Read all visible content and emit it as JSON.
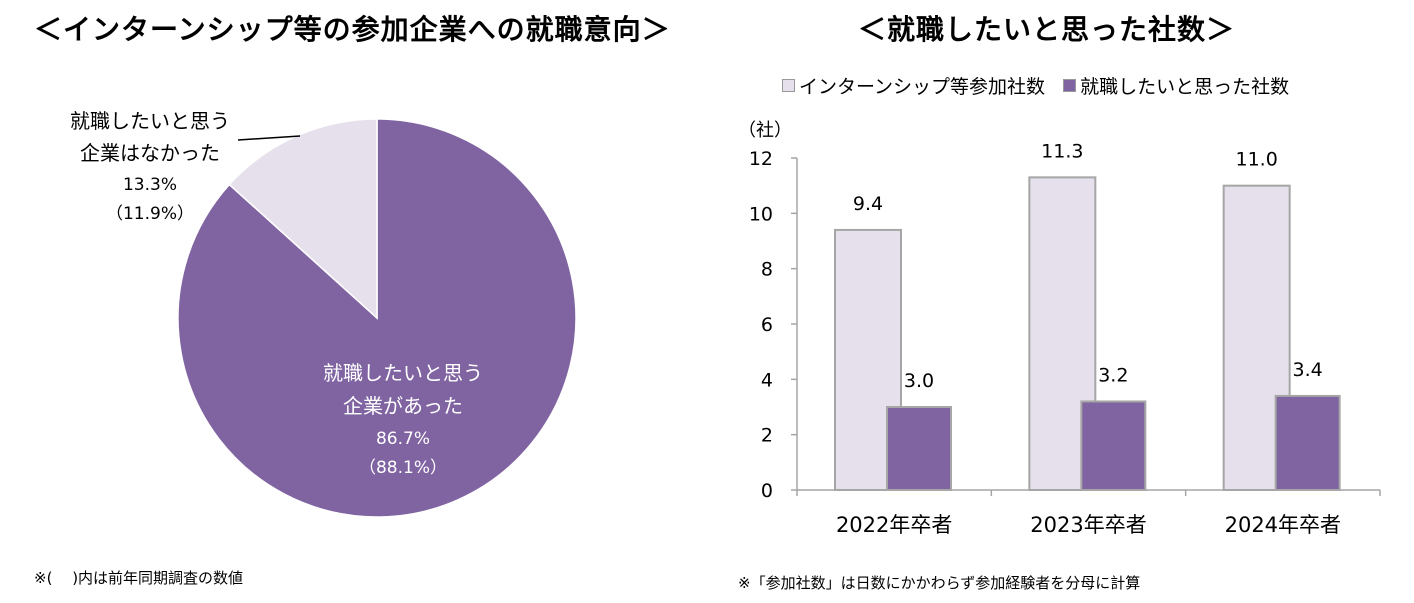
{
  "left_title": "＜インターンシップ等の参加企業への就職意向＞",
  "right_title": "＜就職したいと思った社数＞",
  "left_note": "※(　 )内は前年同期調査の数値",
  "right_note": "※「参加社数」は日数にかかわらず参加経験者を分母に計算",
  "colors": {
    "purple": "#8064A2",
    "lavender": "#E6E0EC",
    "border": "#A6A6A6"
  },
  "chart_data": [
    {
      "type": "pie",
      "title": "＜インターンシップ等の参加企業への就職意向＞",
      "slices": [
        {
          "label_lines": [
            "就職したいと思う",
            "企業があった"
          ],
          "value": 86.7,
          "value_text": "86.7%",
          "prev_text": "（88.1%）",
          "color": "#8064A2"
        },
        {
          "label_lines": [
            "就職したいと思う",
            "企業はなかった"
          ],
          "value": 13.3,
          "value_text": "13.3%",
          "prev_text": "（11.9%）",
          "color": "#E6E0EC"
        }
      ]
    },
    {
      "type": "bar",
      "title": "＜就職したいと思った社数＞",
      "ylabel": "（社）",
      "ylim": [
        0,
        12
      ],
      "yticks": [
        0,
        2,
        4,
        6,
        8,
        10,
        12
      ],
      "categories": [
        "2022年卒者",
        "2023年卒者",
        "2024年卒者"
      ],
      "series": [
        {
          "name": "インターンシップ等参加社数",
          "color": "#E6E0EC",
          "values": [
            9.4,
            11.3,
            11.0
          ],
          "labels": [
            "9.4",
            "11.3",
            "11.0"
          ]
        },
        {
          "name": "就職したいと思った社数",
          "color": "#8064A2",
          "values": [
            3.0,
            3.2,
            3.4
          ],
          "labels": [
            "3.0",
            "3.2",
            "3.4"
          ]
        }
      ]
    }
  ]
}
